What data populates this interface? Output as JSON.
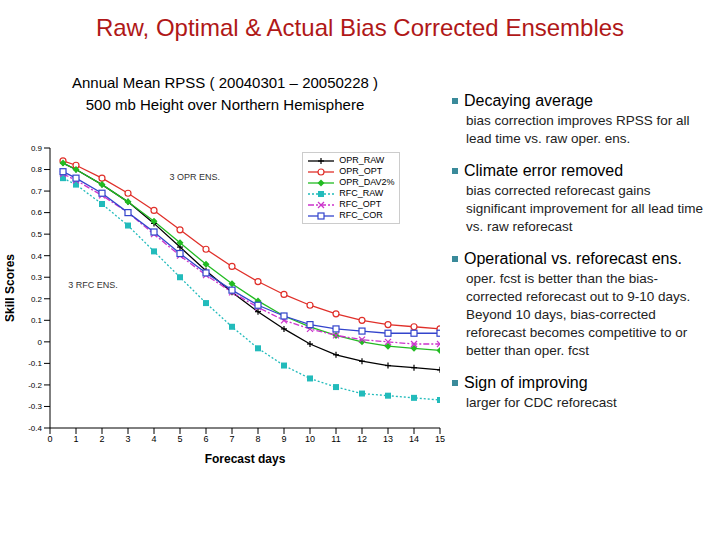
{
  "slide_title": "Raw, Optimal & Actual Bias Corrected Ensembles",
  "bullets": [
    {
      "heading": "Decaying average",
      "text": "bias correction improves RPSS for all lead time vs. raw oper. ens."
    },
    {
      "heading": "Climate error removed",
      "text": "bias corrected reforecast gains significant improvement for all lead time vs. raw reforecast"
    },
    {
      "heading": "Operational vs. reforecast ens.",
      "text": "oper. fcst is better than the bias-corrected reforecast out to 9-10 days. Beyond 10 days, bias-corrected reforecast becomes competitive to or better than oper. fcst"
    },
    {
      "heading": "Sign of improving",
      "text": "larger for CDC reforecast"
    }
  ],
  "chart_data": {
    "type": "line",
    "title": "Annual Mean RPSS ( 20040301 – 20050228 )",
    "subtitle": "500 mb Height over Northern Hemisphere",
    "x_label": "Forecast days",
    "y_label": "Skill Scores",
    "annotations": [
      "3 OPR ENS.",
      "3 RFC ENS."
    ],
    "x": [
      0.5,
      1,
      2,
      3,
      4,
      5,
      6,
      7,
      8,
      9,
      10,
      11,
      12,
      13,
      14,
      15
    ],
    "series": [
      {
        "name": "OPR_RAW",
        "color": "#000000",
        "marker": "plus",
        "line_style": "solid",
        "values": [
          0.83,
          0.8,
          0.73,
          0.65,
          0.55,
          0.44,
          0.33,
          0.23,
          0.14,
          0.06,
          -0.01,
          -0.06,
          -0.09,
          -0.11,
          -0.12,
          -0.13
        ]
      },
      {
        "name": "OPR_OPT",
        "color": "#e0302a",
        "marker": "circle",
        "line_style": "solid",
        "values": [
          0.84,
          0.82,
          0.76,
          0.69,
          0.61,
          0.52,
          0.43,
          0.35,
          0.28,
          0.22,
          0.17,
          0.13,
          0.1,
          0.08,
          0.07,
          0.06
        ]
      },
      {
        "name": "OPR_DAV2%",
        "color": "#22bb22",
        "marker": "diamond",
        "line_style": "solid",
        "values": [
          0.83,
          0.8,
          0.73,
          0.65,
          0.56,
          0.46,
          0.36,
          0.27,
          0.19,
          0.12,
          0.07,
          0.03,
          0.0,
          -0.02,
          -0.03,
          -0.04
        ]
      },
      {
        "name": "RFC_RAW",
        "color": "#22bbbb",
        "marker": "square",
        "line_style": "dotted",
        "values": [
          0.76,
          0.73,
          0.64,
          0.54,
          0.42,
          0.3,
          0.18,
          0.07,
          -0.03,
          -0.11,
          -0.17,
          -0.21,
          -0.24,
          -0.25,
          -0.26,
          -0.27
        ]
      },
      {
        "name": "RFC_OPT",
        "color": "#cc33cc",
        "marker": "x",
        "line_style": "dashdot",
        "values": [
          0.78,
          0.75,
          0.68,
          0.6,
          0.5,
          0.4,
          0.31,
          0.23,
          0.16,
          0.1,
          0.06,
          0.03,
          0.01,
          0.0,
          -0.01,
          -0.01
        ]
      },
      {
        "name": "RFC_COR",
        "color": "#3344cc",
        "marker": "square_open",
        "line_style": "solid",
        "values": [
          0.79,
          0.76,
          0.69,
          0.6,
          0.51,
          0.41,
          0.32,
          0.24,
          0.17,
          0.12,
          0.08,
          0.06,
          0.05,
          0.04,
          0.04,
          0.04
        ]
      }
    ],
    "xlim": [
      0,
      15
    ],
    "xticks": [
      0,
      1,
      2,
      3,
      4,
      5,
      6,
      7,
      8,
      9,
      10,
      11,
      12,
      13,
      14,
      15
    ],
    "ylim": [
      -0.4,
      0.9
    ],
    "yticks": [
      -0.4,
      -0.3,
      -0.2,
      -0.1,
      0,
      0.1,
      0.2,
      0.3,
      0.4,
      0.5,
      0.6,
      0.7,
      0.8,
      0.9
    ],
    "grid": false,
    "legend": "upper right"
  }
}
